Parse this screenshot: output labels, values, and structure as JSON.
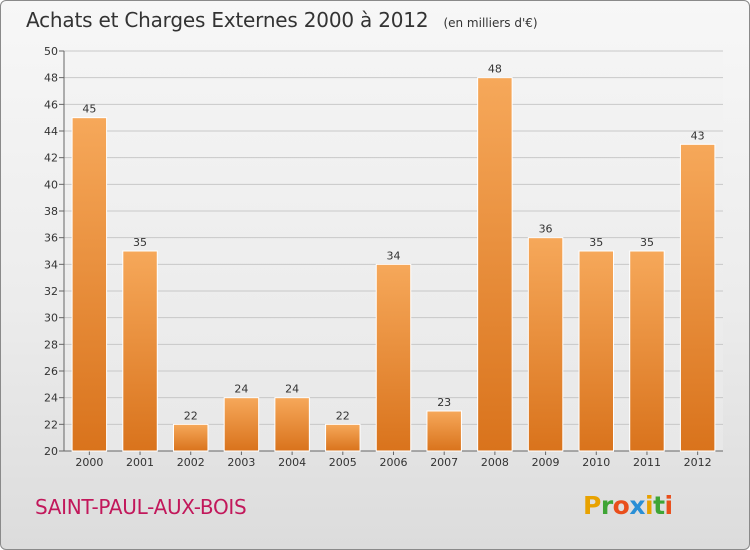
{
  "header": {
    "title": "Achats et Charges Externes 2000 à 2012",
    "subtitle": "(en milliers d'€)"
  },
  "footer": {
    "town": "SAINT-PAUL-AUX-BOIS",
    "logo_letters": [
      "P",
      "r",
      "o",
      "x",
      "i",
      "t",
      "i"
    ],
    "logo_colors": [
      "#e8a200",
      "#3fa535",
      "#e94e1b",
      "#2a8fd6",
      "#e8a200",
      "#3fa535",
      "#e94e1b"
    ]
  },
  "chart_data": {
    "type": "bar",
    "categories": [
      "2000",
      "2001",
      "2002",
      "2003",
      "2004",
      "2005",
      "2006",
      "2007",
      "2008",
      "2009",
      "2010",
      "2011",
      "2012"
    ],
    "values": [
      45,
      35,
      22,
      24,
      24,
      22,
      34,
      23,
      48,
      36,
      35,
      35,
      43
    ],
    "title": "Achats et Charges Externes 2000 à 2012",
    "subtitle": "(en milliers d'€)",
    "ylim": [
      20,
      50
    ],
    "yticks": [
      20,
      22,
      24,
      26,
      28,
      30,
      32,
      34,
      36,
      38,
      40,
      42,
      44,
      46,
      48,
      50
    ],
    "grid": true,
    "bar_color_top": "#f6a85a",
    "bar_color_bottom": "#d9731c"
  }
}
